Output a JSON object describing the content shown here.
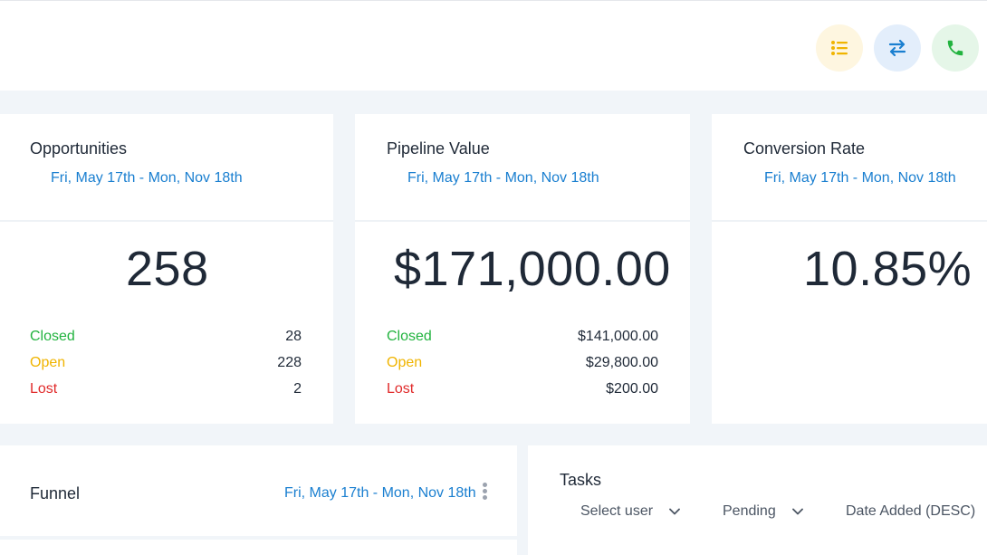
{
  "header": {
    "actions": [
      {
        "name": "list-icon",
        "color": "#f0b400"
      },
      {
        "name": "swap-icon",
        "color": "#1a7fd0"
      },
      {
        "name": "phone-icon",
        "color": "#22b33f"
      }
    ]
  },
  "cards": {
    "opportunities": {
      "title": "Opportunities",
      "range": "Fri, May 17th - Mon, Nov 18th",
      "value": "258",
      "rows": [
        {
          "label": "Closed",
          "value": "28"
        },
        {
          "label": "Open",
          "value": "228"
        },
        {
          "label": "Lost",
          "value": "2"
        }
      ]
    },
    "pipeline": {
      "title": "Pipeline Value",
      "range": "Fri, May 17th - Mon, Nov 18th",
      "value": "$171,000.00",
      "rows": [
        {
          "label": "Closed",
          "value": "$141,000.00"
        },
        {
          "label": "Open",
          "value": "$29,800.00"
        },
        {
          "label": "Lost",
          "value": "$200.00"
        }
      ]
    },
    "conversion": {
      "title": "Conversion Rate",
      "range": "Fri, May 17th - Mon, Nov 18th",
      "value": "10.85%"
    }
  },
  "funnel": {
    "title": "Funnel",
    "range": "Fri, May 17th - Mon, Nov 18th"
  },
  "tasks": {
    "title": "Tasks",
    "user_select": "Select user",
    "status_select": "Pending",
    "sort_select": "Date Added (DESC)"
  },
  "colors": {
    "closed": "#22b33f",
    "open": "#f0b400",
    "lost": "#e02a2a",
    "link": "#1a7fd0"
  }
}
